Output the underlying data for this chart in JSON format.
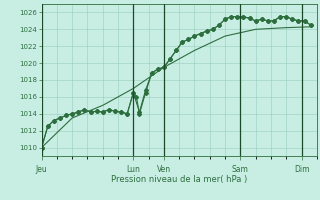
{
  "xlabel": "Pression niveau de la mer( hPa )",
  "background_color": "#c8eee4",
  "plot_bg_color": "#c8eee4",
  "grid_color": "#99ccbb",
  "line_color": "#2d6e3e",
  "vline_color": "#1a4a2a",
  "ylim": [
    1009,
    1027
  ],
  "yticks": [
    1010,
    1012,
    1014,
    1016,
    1018,
    1020,
    1022,
    1024,
    1026
  ],
  "day_labels": [
    "Jeu",
    "Lun",
    "Ven",
    "Sam",
    "Dim"
  ],
  "day_positions": [
    0.0,
    3.0,
    4.0,
    6.5,
    8.5
  ],
  "xlim": [
    0,
    9
  ],
  "line1_x": [
    0.0,
    0.2,
    0.4,
    0.6,
    0.8,
    1.0,
    1.2,
    1.4,
    1.6,
    1.8,
    2.0,
    2.2,
    2.4,
    2.6,
    2.8,
    3.0,
    3.1,
    3.2,
    3.4,
    3.6,
    3.8,
    4.0,
    4.2,
    4.4,
    4.6,
    4.8,
    5.0,
    5.2,
    5.4,
    5.6,
    5.8,
    6.0,
    6.2,
    6.4,
    6.6,
    6.8,
    7.0,
    7.2,
    7.4,
    7.6,
    7.8,
    8.0,
    8.2,
    8.4,
    8.6,
    8.8
  ],
  "line1_y": [
    1010.0,
    1012.5,
    1013.2,
    1013.5,
    1013.8,
    1014.0,
    1014.2,
    1014.5,
    1014.2,
    1014.3,
    1014.2,
    1014.5,
    1014.3,
    1014.2,
    1014.0,
    1016.5,
    1016.0,
    1014.0,
    1016.5,
    1018.8,
    1019.3,
    1019.5,
    1020.5,
    1021.5,
    1022.5,
    1022.8,
    1023.2,
    1023.5,
    1023.8,
    1024.0,
    1024.5,
    1025.2,
    1025.5,
    1025.5,
    1025.5,
    1025.3,
    1025.0,
    1025.2,
    1025.0,
    1025.0,
    1025.5,
    1025.5,
    1025.2,
    1025.0,
    1025.0,
    1024.5
  ],
  "line2_x": [
    0.0,
    0.2,
    0.4,
    0.6,
    0.8,
    1.0,
    1.2,
    1.4,
    1.6,
    1.8,
    2.0,
    2.2,
    2.4,
    2.6,
    2.8,
    3.0,
    3.2,
    3.4,
    3.6,
    3.8,
    4.0,
    4.2,
    4.4,
    4.6,
    4.8,
    5.0,
    5.2,
    5.4,
    5.6,
    5.8,
    6.0,
    6.2,
    6.4,
    6.6,
    6.8,
    7.0,
    7.2,
    7.4,
    7.6,
    7.8,
    8.0,
    8.2,
    8.4,
    8.6,
    8.8
  ],
  "line2_y": [
    1010.0,
    1012.5,
    1013.2,
    1013.5,
    1013.8,
    1014.0,
    1014.2,
    1014.5,
    1014.2,
    1014.3,
    1014.2,
    1014.5,
    1014.3,
    1014.2,
    1014.0,
    1016.5,
    1014.2,
    1016.8,
    1018.8,
    1019.3,
    1019.5,
    1020.5,
    1021.5,
    1022.5,
    1022.8,
    1023.2,
    1023.5,
    1023.8,
    1024.0,
    1024.5,
    1025.2,
    1025.5,
    1025.5,
    1025.5,
    1025.3,
    1025.0,
    1025.2,
    1025.0,
    1025.0,
    1025.5,
    1025.5,
    1025.2,
    1025.0,
    1025.0,
    1024.5
  ],
  "line3_x": [
    0.0,
    1.0,
    2.0,
    3.0,
    4.0,
    5.0,
    6.0,
    7.0,
    8.0,
    8.8
  ],
  "line3_y": [
    1010.0,
    1013.5,
    1015.0,
    1017.0,
    1019.5,
    1021.5,
    1023.2,
    1024.0,
    1024.2,
    1024.3
  ]
}
